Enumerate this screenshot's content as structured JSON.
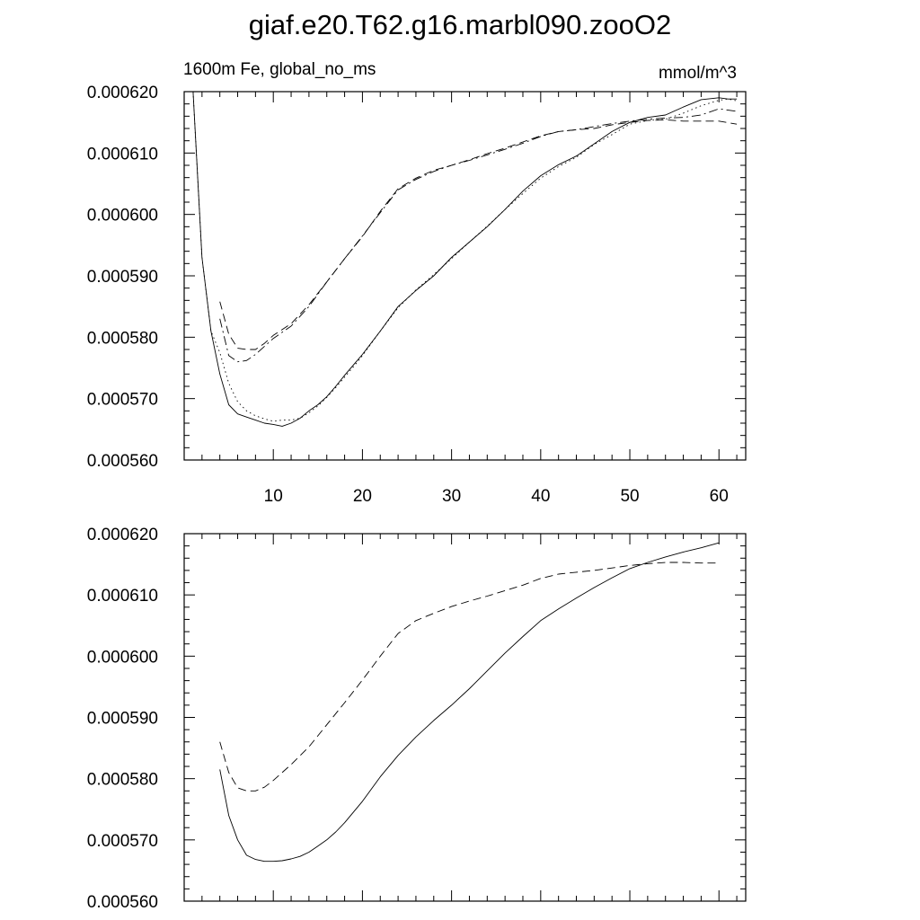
{
  "figure": {
    "title": "giaf.e20.T62.g16.marbl090.zooO2",
    "left_string": "1600m Fe, global_no_ms",
    "right_string": "mmol/m^3"
  },
  "chart_data": [
    {
      "type": "line",
      "title": "giaf.e20.T62.g16.marbl090.zooO2",
      "subtitle_left": "1600m Fe, global_no_ms",
      "units": "mmol/m^3",
      "xlim": [
        0,
        63
      ],
      "ylim": [
        0.00056,
        0.00062
      ],
      "xticks": [
        10,
        20,
        30,
        40,
        50,
        60
      ],
      "xtick_labels": [
        "10",
        "20",
        "30",
        "40",
        "50",
        "60"
      ],
      "yticks": [
        0.00056,
        0.00057,
        0.00058,
        0.00059,
        0.0006,
        0.00061,
        0.00062
      ],
      "ytick_labels": [
        "0.000560",
        "0.000570",
        "0.000580",
        "0.000590",
        "0.000600",
        "0.000610",
        "0.000620"
      ],
      "grid": false,
      "series": [
        {
          "style": "solid",
          "x": [
            1,
            2,
            3,
            4,
            5,
            6,
            7,
            8,
            9,
            10,
            11,
            12,
            13,
            14,
            15,
            16,
            17,
            18,
            19,
            20,
            22,
            24,
            26,
            28,
            30,
            32,
            34,
            36,
            38,
            40,
            42,
            44,
            46,
            48,
            50,
            52,
            54,
            56,
            58,
            60,
            61,
            62
          ],
          "y": [
            0.00062,
            0.000593,
            0.000581,
            0.000574,
            0.000569,
            0.0005675,
            0.000567,
            0.0005665,
            0.000566,
            0.0005658,
            0.0005655,
            0.000566,
            0.0005668,
            0.000568,
            0.000569,
            0.0005703,
            0.000572,
            0.0005738,
            0.0005755,
            0.0005772,
            0.000581,
            0.000585,
            0.0005876,
            0.00059,
            0.000593,
            0.0005955,
            0.000598,
            0.0006008,
            0.0006038,
            0.0006063,
            0.0006081,
            0.0006095,
            0.0006115,
            0.0006135,
            0.000615,
            0.0006158,
            0.0006162,
            0.0006175,
            0.0006187,
            0.000619,
            0.0006188,
            0.0006188
          ]
        },
        {
          "style": "dotted",
          "x": [
            1,
            2,
            3,
            4,
            5,
            6,
            7,
            8,
            9,
            10,
            11,
            12,
            13,
            14,
            15,
            16,
            17,
            18,
            19,
            20,
            22,
            24,
            26,
            28,
            30,
            32,
            34,
            36,
            38,
            40,
            42,
            44,
            46,
            48,
            50,
            52,
            54,
            56,
            58,
            60,
            61,
            62
          ],
          "y": [
            0.00062,
            0.000593,
            0.000581,
            0.0005775,
            0.0005725,
            0.0005695,
            0.000568,
            0.0005672,
            0.0005667,
            0.0005663,
            0.0005665,
            0.0005665,
            0.0005668,
            0.0005677,
            0.0005688,
            0.0005702,
            0.0005718,
            0.0005735,
            0.0005752,
            0.000577,
            0.000581,
            0.0005848,
            0.0005877,
            0.0005902,
            0.0005928,
            0.0005955,
            0.0005981,
            0.0006008,
            0.0006034,
            0.0006059,
            0.0006078,
            0.0006093,
            0.0006114,
            0.000613,
            0.0006147,
            0.0006153,
            0.0006155,
            0.0006165,
            0.0006177,
            0.0006186,
            0.0006188,
            0.0006185
          ]
        },
        {
          "style": "dash-dot",
          "x": [
            4,
            5,
            6,
            7,
            8,
            9,
            10,
            12,
            14,
            16,
            18,
            20,
            22,
            24,
            26,
            28,
            30,
            32,
            34,
            36,
            38,
            40,
            42,
            44,
            46,
            48,
            50,
            52,
            54,
            56,
            58,
            60,
            62
          ],
          "y": [
            0.000583,
            0.000577,
            0.000576,
            0.0005762,
            0.0005772,
            0.0005785,
            0.0005798,
            0.0005818,
            0.000585,
            0.000589,
            0.0005928,
            0.0005965,
            0.0006003,
            0.000604,
            0.0006057,
            0.000607,
            0.000608,
            0.0006088,
            0.0006097,
            0.0006106,
            0.0006116,
            0.0006127,
            0.0006135,
            0.0006138,
            0.0006143,
            0.0006148,
            0.0006152,
            0.0006155,
            0.0006157,
            0.0006158,
            0.0006162,
            0.0006172,
            0.0006168
          ]
        },
        {
          "style": "dashed",
          "x": [
            4,
            5,
            6,
            7,
            8,
            9,
            10,
            12,
            14,
            16,
            18,
            20,
            22,
            24,
            26,
            28,
            30,
            32,
            34,
            36,
            38,
            40,
            42,
            44,
            46,
            48,
            50,
            52,
            54,
            56,
            58,
            60,
            62
          ],
          "y": [
            0.0005858,
            0.0005805,
            0.0005782,
            0.000578,
            0.000578,
            0.000579,
            0.0005803,
            0.0005822,
            0.0005853,
            0.000589,
            0.0005928,
            0.0005964,
            0.0006005,
            0.0006042,
            0.0006059,
            0.0006072,
            0.000608,
            0.0006089,
            0.0006099,
            0.0006108,
            0.0006118,
            0.0006128,
            0.0006135,
            0.0006138,
            0.000614,
            0.0006146,
            0.000615,
            0.0006153,
            0.0006154,
            0.0006152,
            0.0006152,
            0.0006152,
            0.0006147
          ]
        }
      ]
    },
    {
      "type": "line",
      "xlim": [
        0,
        63
      ],
      "ylim": [
        0.00056,
        0.00062
      ],
      "xticks": [
        10,
        20,
        30,
        40,
        50,
        60
      ],
      "yticks": [
        0.00056,
        0.00057,
        0.00058,
        0.00059,
        0.0006,
        0.00061,
        0.00062
      ],
      "ytick_labels": [
        "0.000560",
        "0.000570",
        "0.000580",
        "0.000590",
        "0.000600",
        "0.000610",
        "0.000620"
      ],
      "grid": false,
      "series": [
        {
          "style": "solid",
          "x": [
            4,
            5,
            6,
            7,
            8,
            9,
            10,
            11,
            12,
            13,
            14,
            15,
            16,
            17,
            18,
            20,
            22,
            24,
            26,
            28,
            30,
            32,
            34,
            36,
            38,
            40,
            42,
            44,
            46,
            48,
            50,
            52,
            54,
            56,
            58,
            60
          ],
          "y": [
            0.0005815,
            0.000574,
            0.00057,
            0.0005675,
            0.0005668,
            0.0005665,
            0.0005665,
            0.0005666,
            0.0005669,
            0.0005673,
            0.000568,
            0.000569,
            0.00057,
            0.0005713,
            0.0005728,
            0.0005763,
            0.0005803,
            0.0005838,
            0.0005868,
            0.0005895,
            0.000592,
            0.0005947,
            0.0005976,
            0.0006005,
            0.0006032,
            0.0006058,
            0.0006077,
            0.0006095,
            0.0006112,
            0.0006128,
            0.0006143,
            0.0006153,
            0.0006162,
            0.000617,
            0.0006177,
            0.0006185
          ]
        },
        {
          "style": "dashed",
          "x": [
            4,
            5,
            6,
            7,
            8,
            9,
            10,
            12,
            14,
            16,
            18,
            20,
            22,
            24,
            26,
            28,
            30,
            32,
            34,
            36,
            38,
            40,
            42,
            44,
            46,
            48,
            50,
            52,
            54,
            56,
            58,
            60
          ],
          "y": [
            0.000586,
            0.000581,
            0.0005785,
            0.000578,
            0.000578,
            0.0005786,
            0.0005797,
            0.0005823,
            0.0005852,
            0.0005888,
            0.0005924,
            0.0005961,
            0.0006,
            0.0006037,
            0.0006058,
            0.000607,
            0.0006081,
            0.000609,
            0.0006098,
            0.0006107,
            0.0006116,
            0.0006127,
            0.0006134,
            0.0006137,
            0.000614,
            0.0006144,
            0.0006148,
            0.0006151,
            0.0006153,
            0.0006153,
            0.0006152,
            0.0006152
          ]
        }
      ]
    }
  ]
}
